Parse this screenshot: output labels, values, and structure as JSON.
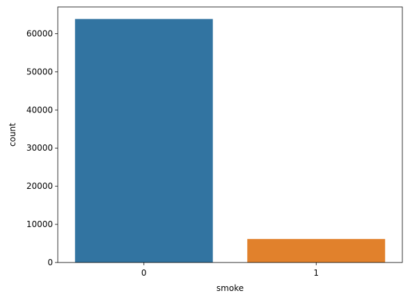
{
  "chart_data": {
    "type": "bar",
    "categories": [
      "0",
      "1"
    ],
    "values": [
      63840,
      6160
    ],
    "title": "",
    "xlabel": "smoke",
    "ylabel": "count",
    "ylim": [
      0,
      67000
    ],
    "yticks": [
      0,
      10000,
      20000,
      30000,
      40000,
      50000,
      60000
    ],
    "ytick_labels": [
      "0",
      "10000",
      "20000",
      "30000",
      "40000",
      "50000",
      "60000"
    ],
    "grid": false,
    "colors": [
      "#3274a1",
      "#e1812c"
    ]
  }
}
